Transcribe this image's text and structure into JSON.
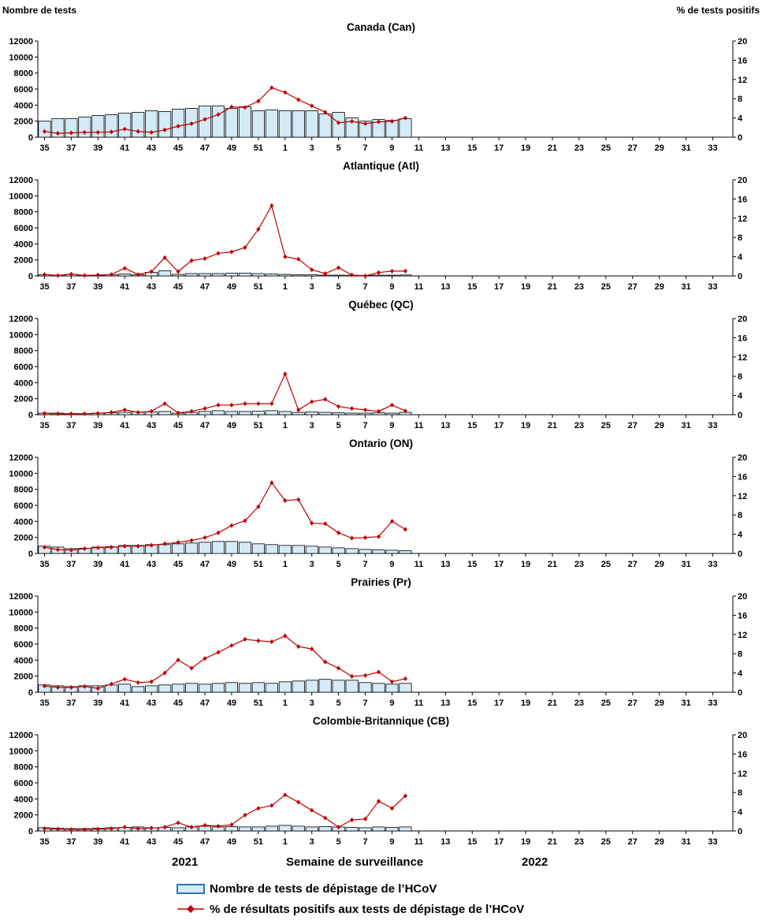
{
  "page": {
    "year_left": "2021",
    "year_right": "2022",
    "x_axis_title": "Semaine de surveillance",
    "legend": [
      {
        "label": "Nombre de tests de dépistage de l’HCoV",
        "type": "bar"
      },
      {
        "label": "% de résultats positifs aux tests de dépistage de l’HCoV",
        "type": "line"
      }
    ]
  },
  "chart_data": {
    "type": "bar+line small multiples (6 panels)",
    "left_axis": {
      "title": "Nombre de tests",
      "min": 0,
      "max": 12000,
      "step": 2000
    },
    "right_axis": {
      "title": "% de tests positifs",
      "min": 0,
      "max": 20,
      "step": 4
    },
    "x_axis": {
      "total_slots": 52,
      "tick_every": 2,
      "tick_labels": [
        "35",
        "37",
        "39",
        "41",
        "43",
        "45",
        "47",
        "49",
        "51",
        "1",
        "3",
        "5",
        "7",
        "9",
        "11",
        "13",
        "15",
        "17",
        "19",
        "21",
        "23",
        "25",
        "27",
        "29",
        "31",
        "33"
      ],
      "data_weeks": [
        35,
        36,
        37,
        38,
        39,
        40,
        41,
        42,
        43,
        44,
        45,
        46,
        47,
        48,
        49,
        50,
        51,
        52,
        1,
        2,
        3,
        4,
        5,
        6,
        7,
        8,
        9,
        10
      ]
    },
    "colors": {
      "bar_fill": "#d4eaf7",
      "bar_stroke": "#000000",
      "line": "#c00000",
      "legend_box_border": "#2e75b6"
    },
    "panels": [
      {
        "title": "Canada (Can)",
        "tests": [
          2000,
          2300,
          2300,
          2500,
          2700,
          2800,
          3000,
          3100,
          3300,
          3200,
          3500,
          3600,
          3900,
          3900,
          3600,
          3800,
          3300,
          3400,
          3300,
          3300,
          3300,
          2900,
          3100,
          2400,
          2000,
          2200,
          2100,
          2300
        ],
        "pct_positive": [
          1.2,
          0.8,
          0.9,
          1.0,
          1.0,
          1.1,
          1.7,
          1.2,
          1.0,
          1.5,
          2.3,
          2.8,
          3.7,
          4.7,
          6.3,
          6.2,
          7.5,
          10.3,
          9.3,
          7.8,
          6.5,
          5.2,
          3.0,
          3.3,
          2.8,
          3.2,
          3.3,
          4.0
        ]
      },
      {
        "title": "Atlantique (Atl)",
        "tests": [
          150,
          100,
          200,
          100,
          100,
          150,
          250,
          150,
          450,
          650,
          200,
          300,
          300,
          300,
          350,
          350,
          300,
          250,
          200,
          150,
          150,
          100,
          100,
          100,
          80,
          100,
          100,
          120
        ],
        "pct_positive": [
          0.3,
          0.1,
          0.4,
          0.1,
          0.2,
          0.3,
          1.6,
          0.3,
          0.9,
          3.8,
          0.9,
          3.2,
          3.6,
          4.7,
          5.0,
          5.9,
          9.7,
          14.6,
          4.0,
          3.5,
          1.3,
          0.5,
          1.7,
          0.2,
          0.0,
          0.7,
          1.0,
          1.0
        ]
      },
      {
        "title": "Québec (QC)",
        "tests": [
          200,
          200,
          150,
          150,
          200,
          250,
          300,
          350,
          350,
          400,
          200,
          300,
          400,
          500,
          400,
          400,
          450,
          500,
          400,
          300,
          350,
          300,
          250,
          200,
          200,
          250,
          200,
          300
        ],
        "pct_positive": [
          0.3,
          0.2,
          0.2,
          0.2,
          0.3,
          0.5,
          1.0,
          0.5,
          0.7,
          2.3,
          0.4,
          0.7,
          1.3,
          2.0,
          2.0,
          2.3,
          2.3,
          2.3,
          8.5,
          1.0,
          2.7,
          3.2,
          1.7,
          1.3,
          1.0,
          0.7,
          2.0,
          0.8
        ]
      },
      {
        "title": "Ontario (ON)",
        "tests": [
          900,
          800,
          600,
          650,
          800,
          850,
          1000,
          1000,
          1100,
          1100,
          1200,
          1300,
          1400,
          1500,
          1500,
          1400,
          1200,
          1100,
          1000,
          1000,
          900,
          800,
          700,
          600,
          500,
          450,
          400,
          350
        ],
        "pct_positive": [
          1.3,
          0.8,
          0.7,
          1.0,
          1.2,
          1.3,
          1.5,
          1.5,
          1.7,
          2.0,
          2.3,
          2.7,
          3.3,
          4.3,
          5.8,
          6.8,
          9.7,
          14.7,
          11.0,
          11.2,
          6.3,
          6.2,
          4.3,
          3.2,
          3.3,
          3.5,
          6.7,
          5.0
        ]
      },
      {
        "title": "Prairies (Pr)",
        "tests": [
          900,
          800,
          700,
          800,
          800,
          900,
          1000,
          700,
          800,
          900,
          1000,
          1100,
          1000,
          1100,
          1200,
          1100,
          1200,
          1100,
          1300,
          1400,
          1500,
          1600,
          1500,
          1500,
          1200,
          1100,
          1000,
          1100
        ],
        "pct_positive": [
          1.3,
          1.0,
          1.0,
          1.2,
          0.8,
          1.7,
          2.7,
          2.0,
          2.2,
          4.0,
          6.7,
          5.0,
          7.0,
          8.3,
          9.7,
          11.0,
          10.7,
          10.5,
          11.7,
          9.5,
          9.0,
          6.3,
          5.0,
          3.3,
          3.5,
          4.2,
          2.2,
          2.8
        ]
      },
      {
        "title": "Colombie-Britannique (CB)",
        "tests": [
          400,
          350,
          300,
          300,
          350,
          400,
          450,
          500,
          400,
          450,
          400,
          500,
          600,
          500,
          550,
          500,
          500,
          600,
          700,
          600,
          500,
          550,
          500,
          450,
          400,
          500,
          450,
          500
        ],
        "pct_positive": [
          0.5,
          0.4,
          0.3,
          0.3,
          0.4,
          0.5,
          0.8,
          0.5,
          0.6,
          0.8,
          1.7,
          0.8,
          1.2,
          1.0,
          1.3,
          3.3,
          4.7,
          5.3,
          7.5,
          6.0,
          4.3,
          2.7,
          0.8,
          2.3,
          2.5,
          6.2,
          4.7,
          7.3
        ]
      }
    ]
  }
}
